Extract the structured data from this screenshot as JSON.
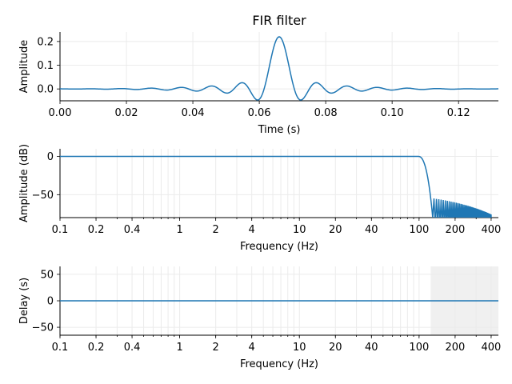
{
  "chart_data": [
    {
      "type": "line",
      "title": "FIR filter",
      "xlabel": "Time (s)",
      "ylabel": "Amplitude",
      "xlim": [
        0,
        0.132
      ],
      "ylim": [
        -0.05,
        0.24
      ],
      "x_scale": "linear",
      "grid": true,
      "xticks": [
        0.0,
        0.02,
        0.04,
        0.06,
        0.08,
        0.1,
        0.12
      ],
      "xtick_labels": [
        "0.00",
        "0.02",
        "0.04",
        "0.06",
        "0.08",
        "0.10",
        "0.12"
      ],
      "yticks": [
        0.0,
        0.1,
        0.2
      ],
      "ytick_labels": [
        "0.0",
        "0.1",
        "0.2"
      ],
      "series": [
        {
          "color": "#1f77b4",
          "description": "windowed-sinc impulse response centered at 0.066 s, peak ~0.22"
        }
      ]
    },
    {
      "type": "line",
      "title": "",
      "xlabel": "Frequency (Hz)",
      "ylabel": "Amplitude (dB)",
      "xlim": [
        0.1,
        460
      ],
      "ylim": [
        -80,
        10
      ],
      "x_scale": "log",
      "grid": true,
      "xticks": [
        0.1,
        0.2,
        0.4,
        1,
        2,
        4,
        10,
        20,
        40,
        100,
        200,
        400
      ],
      "xtick_labels": [
        "0.1",
        "0.2",
        "0.4",
        "1",
        "2",
        "4",
        "10",
        "20",
        "40",
        "100",
        "200",
        "400"
      ],
      "yticks": [
        0,
        -50
      ],
      "ytick_labels": [
        "0",
        "−50"
      ],
      "series": [
        {
          "color": "#1f77b4",
          "passband_db": 0,
          "cutoff_hz": 110,
          "stopband_start_hz": 130
        }
      ]
    },
    {
      "type": "line",
      "title": "",
      "xlabel": "Frequency (Hz)",
      "ylabel": "Delay (s)",
      "xlim": [
        0.1,
        460
      ],
      "ylim": [
        -65,
        65
      ],
      "x_scale": "log",
      "grid": true,
      "xticks": [
        0.1,
        0.2,
        0.4,
        1,
        2,
        4,
        10,
        20,
        40,
        100,
        200,
        400
      ],
      "xtick_labels": [
        "0.1",
        "0.2",
        "0.4",
        "1",
        "2",
        "4",
        "10",
        "20",
        "40",
        "100",
        "200",
        "400"
      ],
      "yticks": [
        50,
        0,
        -50
      ],
      "ytick_labels": [
        "50",
        "0",
        "−50"
      ],
      "shaded_region_hz": [
        125,
        460
      ],
      "series": [
        {
          "color": "#1f77b4",
          "delay_s": 0.066
        }
      ]
    }
  ]
}
